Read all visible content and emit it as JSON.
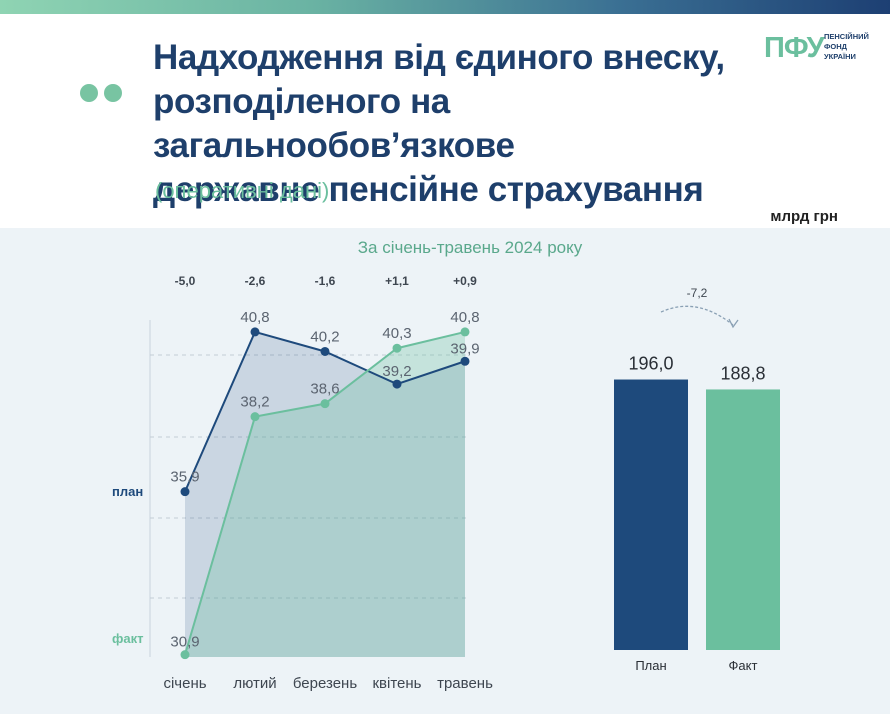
{
  "header": {
    "title_lines": [
      "Надходження від єдиного внеску,",
      "розподіленого на загальнообов’язкове",
      "державне пенсійне страхування"
    ],
    "subtitle": "(оперативні дані)",
    "logo_mark": "ПФУ",
    "logo_text_lines": [
      "ПЕНСІЙНИЙ",
      "ФОНД",
      "УКРАЇНИ"
    ],
    "unit": "млрд грн"
  },
  "colors": {
    "plan": "#1e4a7c",
    "fact": "#6bbf9e",
    "title": "#1e3f6b",
    "panel": "#edf3f7"
  },
  "chart_data": [
    {
      "type": "line",
      "title": "За січень-травень 2024 року",
      "categories": [
        "січень",
        "лютий",
        "березень",
        "квітень",
        "травень"
      ],
      "series": [
        {
          "name": "план",
          "values": [
            35.9,
            40.8,
            40.2,
            39.2,
            39.9
          ]
        },
        {
          "name": "факт",
          "values": [
            30.9,
            38.2,
            38.6,
            40.3,
            40.8
          ]
        }
      ],
      "differences": [
        "-5,0",
        "-2,6",
        "-1,6",
        "+1,1",
        "+0,9"
      ],
      "value_labels": {
        "план": [
          "35,9",
          "40,8",
          "40,2",
          "39,2",
          "39,9"
        ],
        "факт": [
          "30,9",
          "38,2",
          "38,6",
          "40,3",
          "40,8"
        ]
      },
      "grid": true,
      "legend": "left (series names next to first points)"
    },
    {
      "type": "bar",
      "categories": [
        "План",
        "Факт"
      ],
      "values": [
        196.0,
        188.8
      ],
      "value_labels": [
        "196,0",
        "188,8"
      ],
      "difference_label": "-7,2"
    }
  ]
}
